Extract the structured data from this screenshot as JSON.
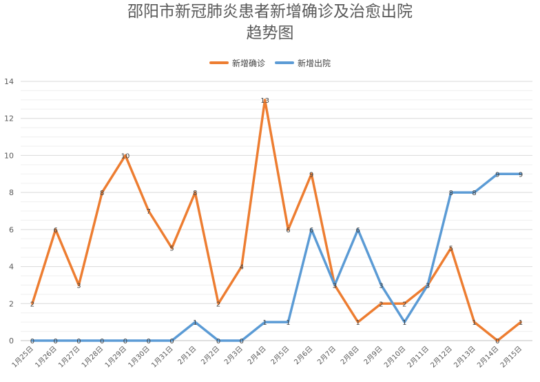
{
  "chart_data": {
    "type": "line",
    "title_lines": [
      "邵阳市新冠肺炎患者新增确诊及治愈出院",
      "趋势图"
    ],
    "categories": [
      "1月25日",
      "1月26日",
      "1月27日",
      "1月28日",
      "1月29日",
      "1月30日",
      "1月31日",
      "2月1日",
      "2月2日",
      "2月3日",
      "2月4日",
      "2月5日",
      "2月6日",
      "2月7日",
      "2月8日",
      "2月9日",
      "2月10日",
      "2月11日",
      "2月12日",
      "2月13日",
      "2月14日",
      "2月15日"
    ],
    "series": [
      {
        "name": "新增确诊",
        "color": "#ED7D31",
        "values": [
          2,
          6,
          3,
          8,
          10,
          7,
          5,
          8,
          2,
          4,
          13,
          6,
          9,
          3,
          1,
          2,
          2,
          3,
          5,
          1,
          0,
          1
        ]
      },
      {
        "name": "新增出院",
        "color": "#5B9BD5",
        "values": [
          0,
          0,
          0,
          0,
          0,
          0,
          0,
          1,
          0,
          0,
          1,
          1,
          6,
          3,
          6,
          3,
          1,
          3,
          8,
          8,
          9,
          9
        ]
      }
    ],
    "ylim": [
      0,
      14
    ],
    "yticks": [
      0,
      2,
      4,
      6,
      8,
      10,
      12,
      14
    ],
    "grid": true,
    "legend_position": "top-center",
    "data_labels": true
  }
}
